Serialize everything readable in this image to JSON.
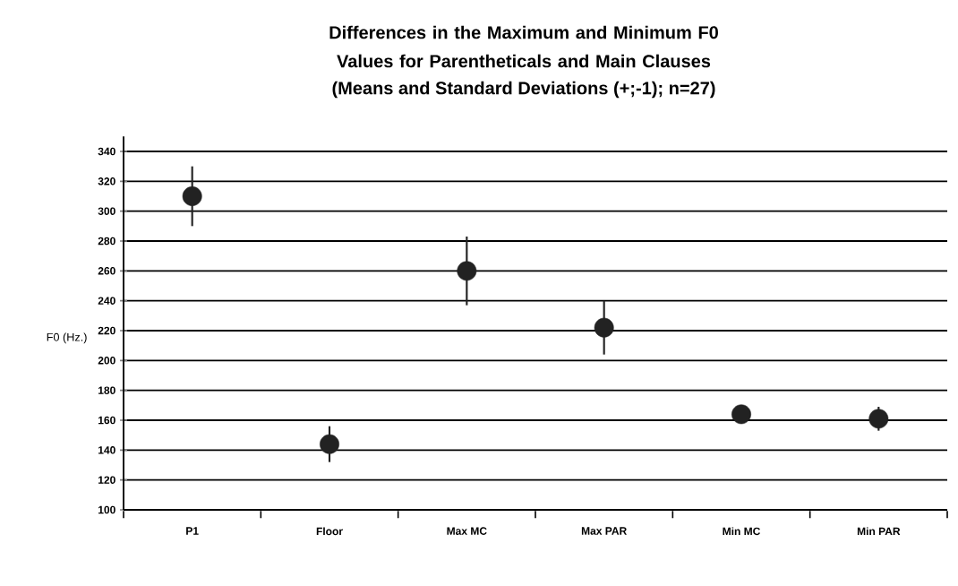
{
  "chart_data": {
    "type": "scatter",
    "title": "Differences in the Maximum and Minimum F0 Values for Parentheticals and Main Clauses",
    "subtitle": "(Means and Standard Deviations (+;-1); n=27)",
    "ylabel": "F0 (Hz.)",
    "categories": [
      "P1",
      "Floor",
      "Max MC",
      "Max PAR",
      "Min MC",
      "Min PAR"
    ],
    "values": [
      310,
      144,
      260,
      222,
      164,
      161
    ],
    "errors": [
      20,
      12,
      23,
      18,
      null,
      8
    ],
    "color": "#222222",
    "marker": "circle",
    "ylim": [
      100,
      350
    ],
    "yticks": [
      100,
      120,
      140,
      160,
      180,
      200,
      220,
      240,
      260,
      280,
      300,
      320,
      340
    ],
    "grid": "y"
  }
}
